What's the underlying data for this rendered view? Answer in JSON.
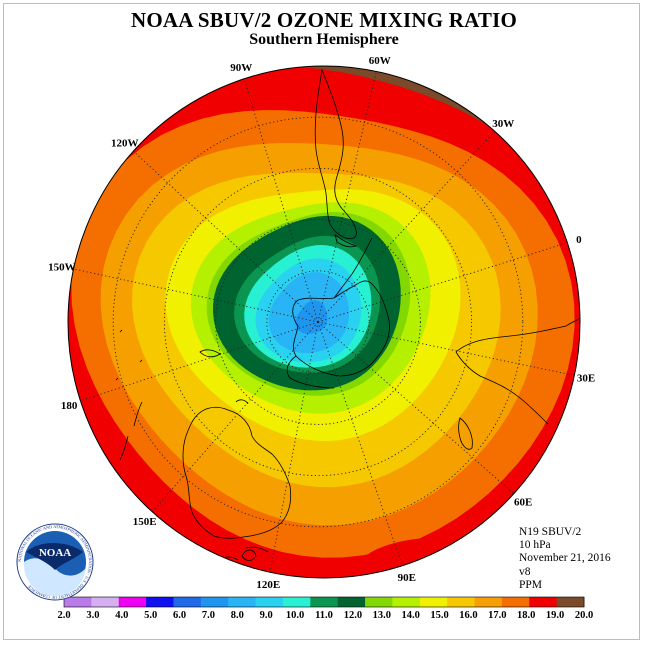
{
  "title": "NOAA SBUV/2 OZONE MIXING RATIO",
  "subtitle": "Southern Hemisphere",
  "logo": {
    "name": "noaa-logo",
    "text": "NOAA",
    "ring_text": "NATIONAL OCEANIC AND ATMOSPHERIC ADMINISTRATION · U.S. DEPARTMENT OF COMMERCE"
  },
  "info": {
    "satellite": "N19 SBUV/2",
    "level": "10 hPa",
    "date": "November 21, 2016",
    "version": "v8",
    "units": "PPM"
  },
  "longitude_labels": [
    "0",
    "30E",
    "60E",
    "90E",
    "120E",
    "150E",
    "180",
    "150W",
    "120W",
    "90W",
    "60W",
    "30W"
  ],
  "colorbar": {
    "ticks": [
      "2.0",
      "3.0",
      "4.0",
      "5.0",
      "6.0",
      "7.0",
      "8.0",
      "9.0",
      "10.0",
      "11.0",
      "12.0",
      "13.0",
      "14.0",
      "15.0",
      "16.0",
      "17.0",
      "18.0",
      "19.0",
      "20.0"
    ],
    "colors": [
      "#b97be8",
      "#d6aef2",
      "#f000f0",
      "#1010f0",
      "#1e6ae8",
      "#1e96f0",
      "#28b4f5",
      "#28d2f0",
      "#28f0d2",
      "#0a9650",
      "#006430",
      "#82d800",
      "#b4f000",
      "#f0f000",
      "#f5c800",
      "#f5a000",
      "#f56e00",
      "#f00000",
      "#7a4a2a"
    ]
  },
  "ozone_levels": [
    {
      "value": "19.0",
      "color": "#7a4a2a"
    },
    {
      "value": "18.0",
      "color": "#f00000"
    },
    {
      "value": "17.0",
      "color": "#f56e00"
    },
    {
      "value": "16.0",
      "color": "#f5a000"
    },
    {
      "value": "15.0",
      "color": "#f5c800"
    },
    {
      "value": "14.0",
      "color": "#f0f000"
    },
    {
      "value": "13.0",
      "color": "#b4f000"
    },
    {
      "value": "12.0",
      "color": "#82d800"
    },
    {
      "value": "11.0",
      "color": "#006430"
    },
    {
      "value": "10.0",
      "color": "#0a9650"
    },
    {
      "value": "9.0",
      "color": "#28f0d2"
    },
    {
      "value": "8.0",
      "color": "#28d2f0"
    },
    {
      "value": "7.0",
      "color": "#28b4f5"
    },
    {
      "value": "6.0",
      "color": "#1e96f0"
    }
  ]
}
